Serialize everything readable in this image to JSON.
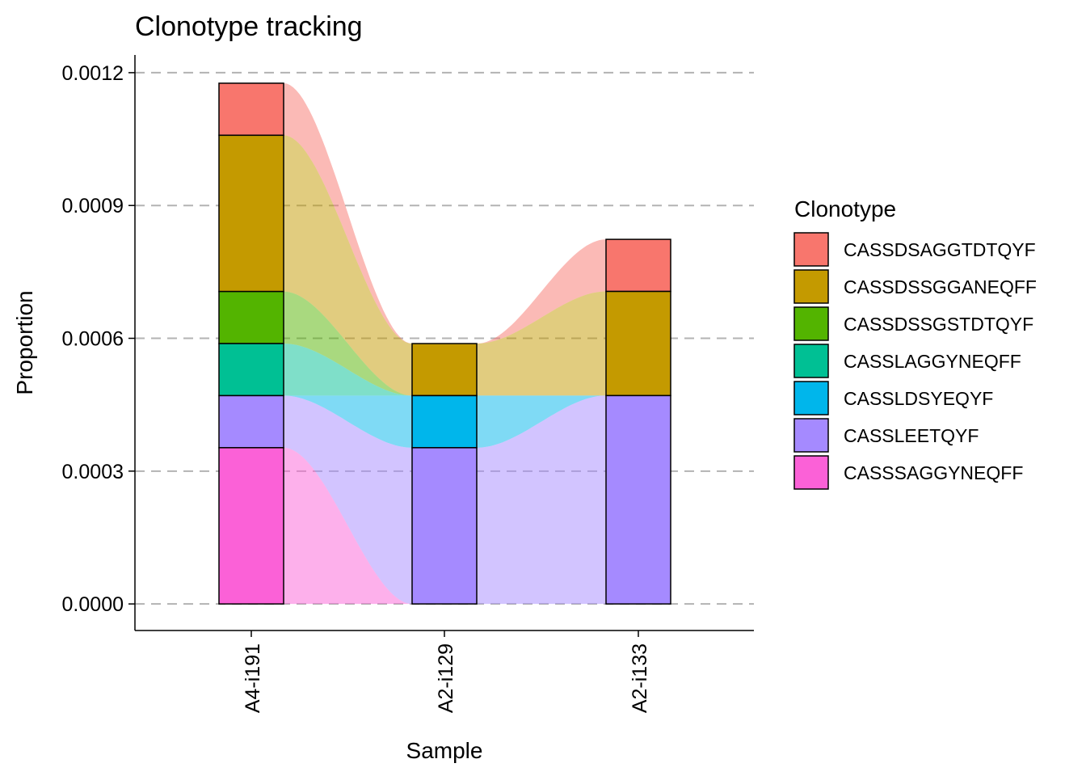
{
  "chart_data": {
    "type": "bar",
    "subtype": "stacked-alluvial",
    "title": "Clonotype tracking",
    "xlabel": "Sample",
    "ylabel": "Proportion",
    "ylim": [
      -6e-05,
      0.00124
    ],
    "yticks": [
      "0.0000",
      "0.0003",
      "0.0006",
      "0.0009",
      "0.0012"
    ],
    "ytick_values": [
      0,
      0.0003,
      0.0006,
      0.0009,
      0.0012
    ],
    "grid": "horizontal dashed",
    "categories": [
      "A4-i191",
      "A2-i129",
      "A2-i133"
    ],
    "legend_title": "Clonotype",
    "legend_position": "right",
    "series": [
      {
        "name": "CASSDSAGGTDTQYF",
        "color": "#F8766D",
        "values": [
          0.0001176,
          0,
          0.0001176
        ]
      },
      {
        "name": "CASSDSSGGANEQFF",
        "color": "#C49A00",
        "values": [
          0.0003529,
          0.0001176,
          0.0002353
        ]
      },
      {
        "name": "CASSDSSGSTDTQYF",
        "color": "#53B400",
        "values": [
          0.0001176,
          0,
          0
        ]
      },
      {
        "name": "CASSLAGGYNEQFF",
        "color": "#00C094",
        "values": [
          0.0001176,
          0,
          0
        ]
      },
      {
        "name": "CASSLDSYEQYF",
        "color": "#00B6EB",
        "values": [
          0,
          0.0001176,
          0
        ]
      },
      {
        "name": "CASSLEETQYF",
        "color": "#A58AFF",
        "values": [
          0.0001176,
          0.0003529,
          0.0004706
        ]
      },
      {
        "name": "CASSSAGGYNEQFF",
        "color": "#FB61D7",
        "values": [
          0.0003529,
          0,
          0
        ]
      }
    ]
  }
}
